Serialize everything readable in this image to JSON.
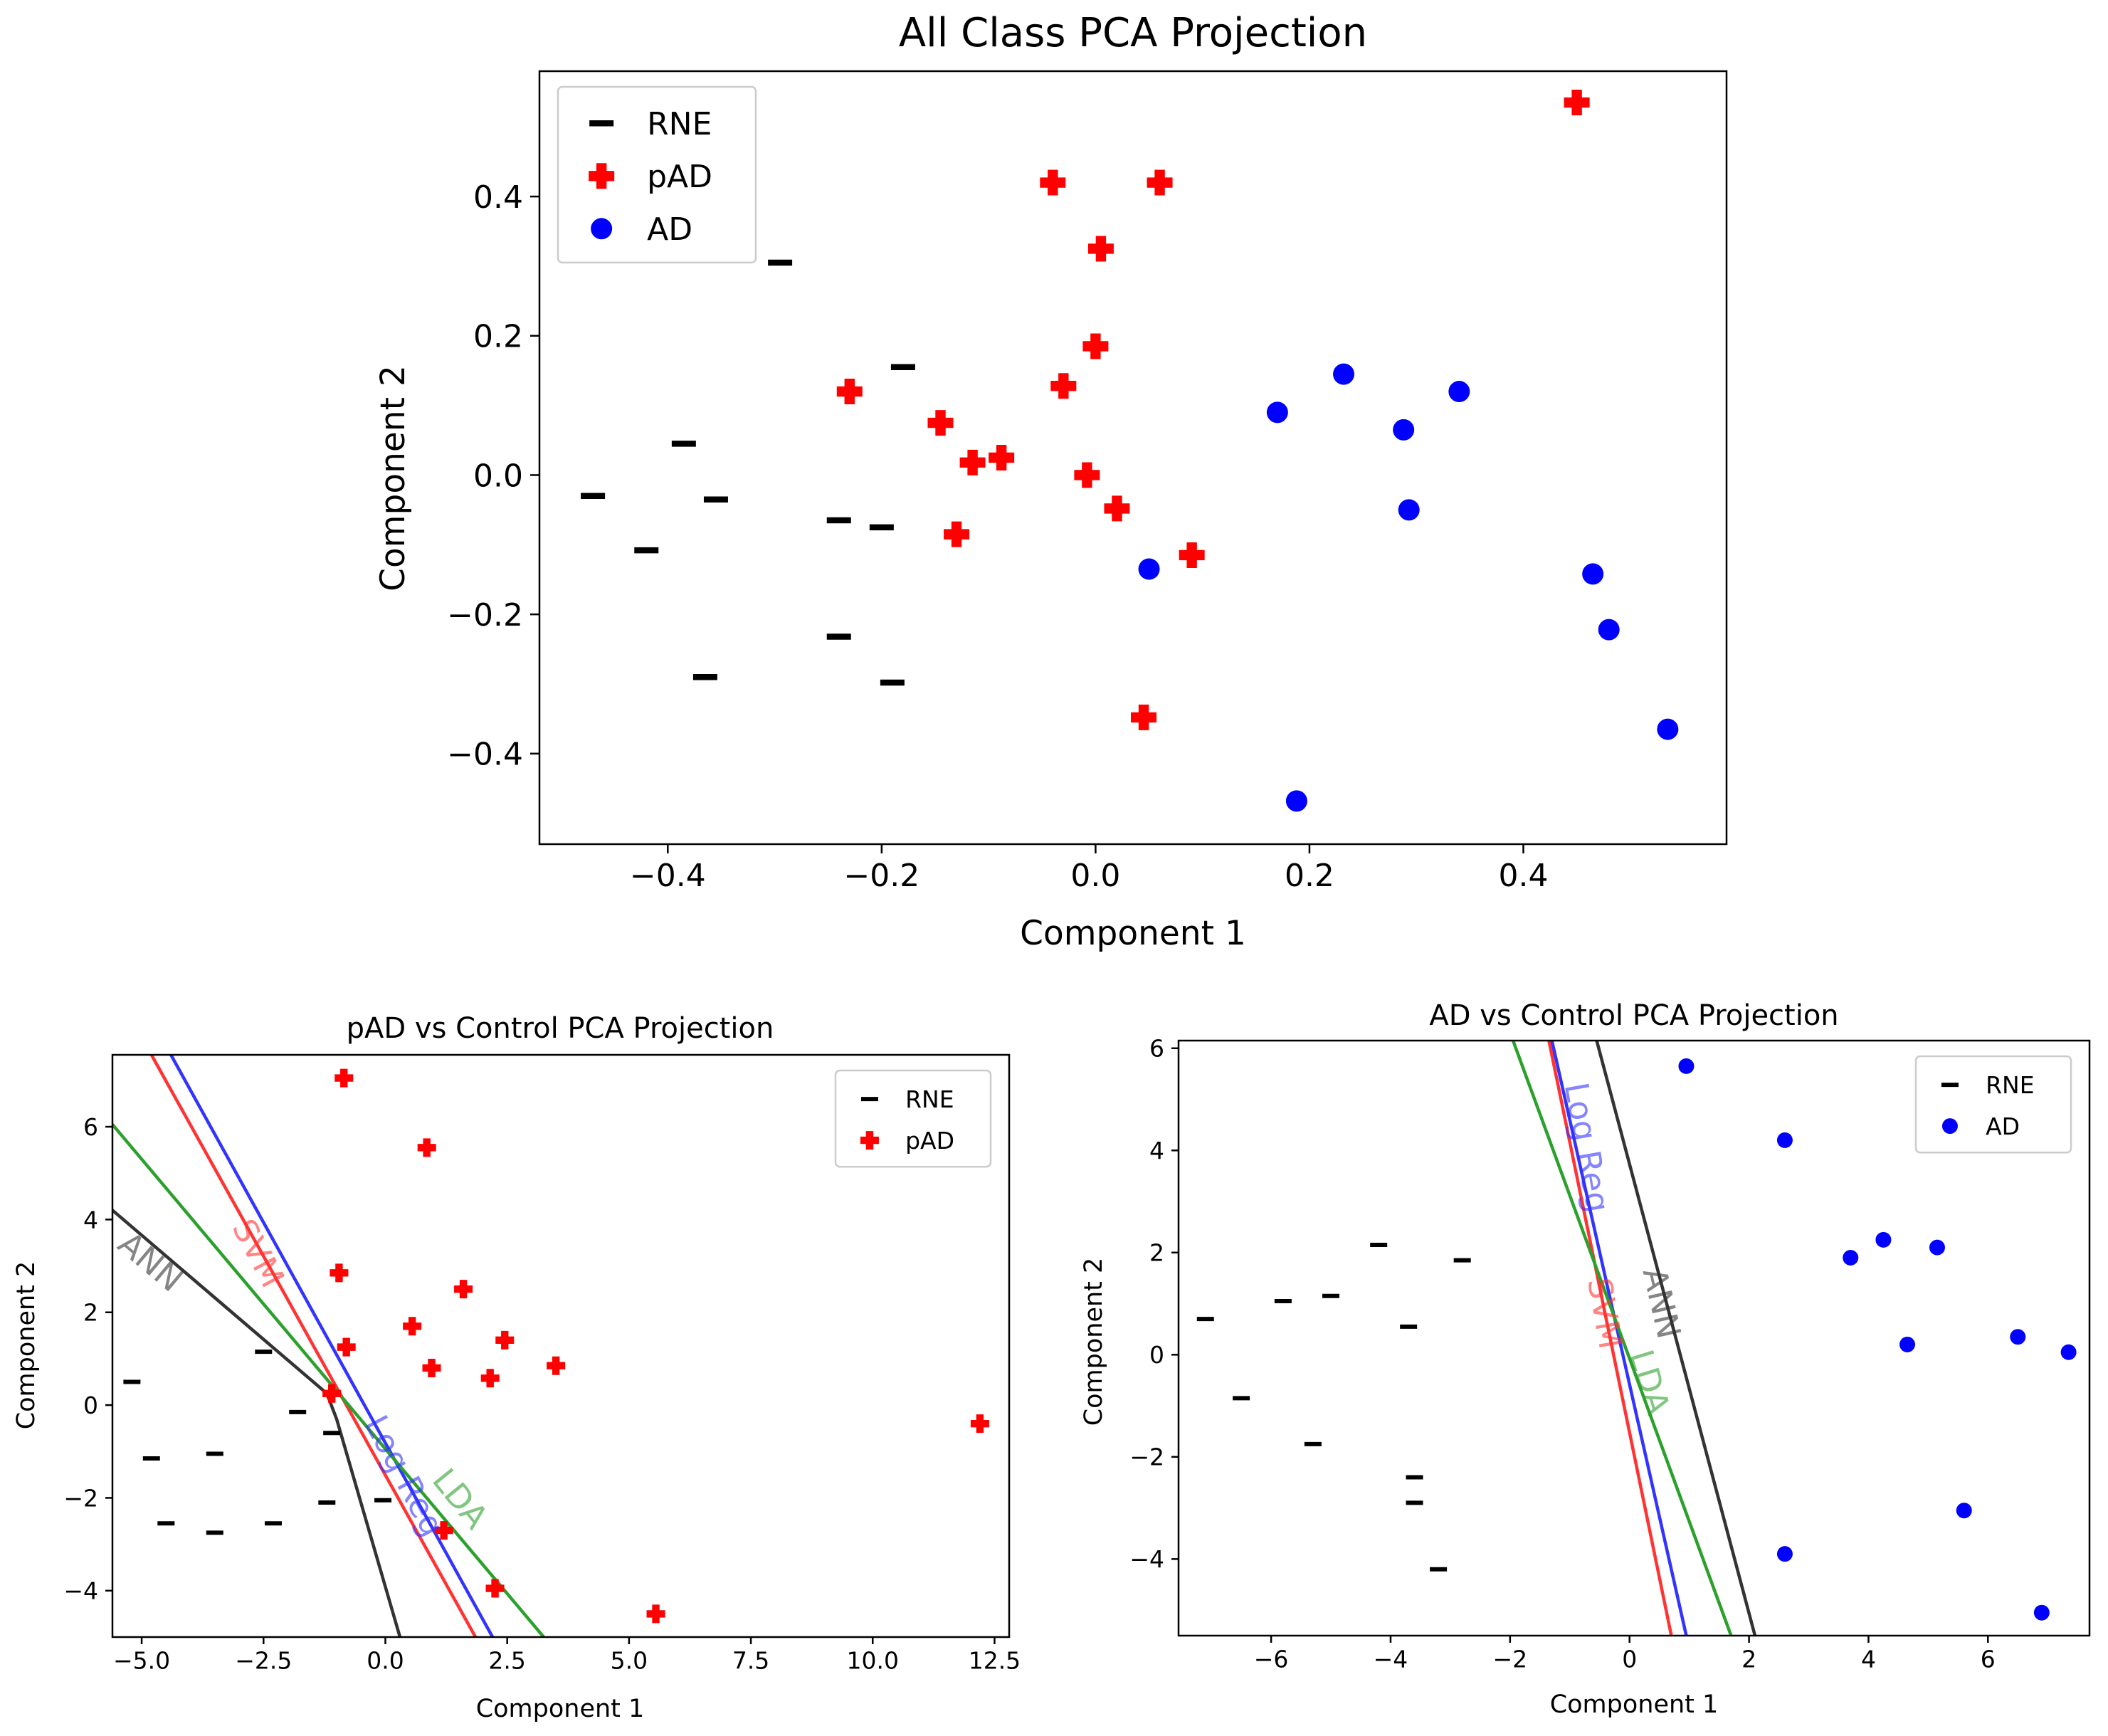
{
  "chart_data": [
    {
      "id": "top",
      "type": "scatter",
      "title": "All Class PCA Projection",
      "xlabel": "Component 1",
      "ylabel": "Component 2",
      "xlim": [
        -0.52,
        0.59
      ],
      "ylim": [
        -0.53,
        0.58
      ],
      "xticks": [
        -0.4,
        -0.2,
        0.0,
        0.2,
        0.4
      ],
      "xtick_labels": [
        "−0.4",
        "−0.2",
        "0.0",
        "0.2",
        "0.4"
      ],
      "yticks": [
        -0.4,
        -0.2,
        0.0,
        0.2,
        0.4
      ],
      "ytick_labels": [
        "−0.4",
        "−0.2",
        "0.0",
        "0.2",
        "0.4"
      ],
      "legend_position": "upper-left",
      "series": [
        {
          "name": "RNE",
          "marker": "dash",
          "color": "#000000",
          "points": [
            [
              -0.295,
              0.305
            ],
            [
              -0.18,
              0.155
            ],
            [
              -0.385,
              0.045
            ],
            [
              -0.47,
              -0.03
            ],
            [
              -0.355,
              -0.035
            ],
            [
              -0.42,
              -0.108
            ],
            [
              -0.24,
              -0.065
            ],
            [
              -0.2,
              -0.075
            ],
            [
              -0.24,
              -0.232
            ],
            [
              -0.365,
              -0.29
            ],
            [
              -0.19,
              -0.298
            ]
          ]
        },
        {
          "name": "pAD",
          "marker": "plus",
          "color": "#ff0000",
          "points": [
            [
              0.45,
              0.535
            ],
            [
              -0.04,
              0.42
            ],
            [
              0.06,
              0.42
            ],
            [
              0.005,
              0.325
            ],
            [
              0.0,
              0.185
            ],
            [
              -0.03,
              0.128
            ],
            [
              -0.23,
              0.12
            ],
            [
              -0.145,
              0.075
            ],
            [
              -0.115,
              0.018
            ],
            [
              -0.088,
              0.025
            ],
            [
              -0.008,
              0.0
            ],
            [
              0.02,
              -0.048
            ],
            [
              -0.13,
              -0.085
            ],
            [
              0.09,
              -0.115
            ],
            [
              0.045,
              -0.348
            ]
          ]
        },
        {
          "name": "AD",
          "marker": "circle",
          "color": "#0000ff",
          "points": [
            [
              0.232,
              0.145
            ],
            [
              0.17,
              0.09
            ],
            [
              0.34,
              0.12
            ],
            [
              0.288,
              0.065
            ],
            [
              0.293,
              -0.05
            ],
            [
              0.05,
              -0.135
            ],
            [
              0.465,
              -0.142
            ],
            [
              0.48,
              -0.222
            ],
            [
              0.535,
              -0.365
            ],
            [
              0.188,
              -0.468
            ]
          ]
        }
      ]
    },
    {
      "id": "left",
      "type": "scatter",
      "title": "pAD vs Control PCA Projection",
      "xlabel": "Component 1",
      "ylabel": "Component 2",
      "xlim": [
        -5.6,
        12.8
      ],
      "ylim": [
        -5.0,
        7.55
      ],
      "xticks": [
        -5,
        -2.5,
        0,
        2.5,
        5,
        7.5,
        10,
        12.5
      ],
      "xtick_labels": [
        "−5.0",
        "−2.5",
        "0.0",
        "2.5",
        "5.0",
        "7.5",
        "10.0",
        "12.5"
      ],
      "yticks": [
        -4,
        -2,
        0,
        2,
        4,
        6
      ],
      "ytick_labels": [
        "−4",
        "−2",
        "0",
        "2",
        "4",
        "6"
      ],
      "legend_position": "upper-right",
      "series": [
        {
          "name": "RNE",
          "marker": "dash",
          "color": "#000000",
          "points": [
            [
              -5.2,
              0.5
            ],
            [
              -2.5,
              1.15
            ],
            [
              -1.8,
              -0.15
            ],
            [
              -1.1,
              -0.6
            ],
            [
              -4.8,
              -1.15
            ],
            [
              -3.5,
              -1.05
            ],
            [
              -1.2,
              -2.1
            ],
            [
              -0.05,
              -2.05
            ],
            [
              -4.5,
              -2.55
            ],
            [
              -3.5,
              -2.75
            ],
            [
              -2.3,
              -2.55
            ]
          ]
        },
        {
          "name": "pAD",
          "marker": "plus",
          "color": "#ff0000",
          "points": [
            [
              -0.85,
              7.05
            ],
            [
              0.85,
              5.55
            ],
            [
              -0.95,
              2.85
            ],
            [
              1.6,
              2.5
            ],
            [
              0.55,
              1.7
            ],
            [
              2.45,
              1.4
            ],
            [
              -0.8,
              1.25
            ],
            [
              0.95,
              0.8
            ],
            [
              2.15,
              0.58
            ],
            [
              3.5,
              0.85
            ],
            [
              -1.1,
              0.25
            ],
            [
              12.2,
              -0.4
            ],
            [
              1.2,
              -2.7
            ],
            [
              2.25,
              -3.95
            ],
            [
              5.55,
              -4.5
            ]
          ]
        }
      ],
      "boundaries": [
        {
          "name": "ANN",
          "color": "#333333",
          "points": [
            [
              -5.6,
              4.2
            ],
            [
              -1.2,
              0.25
            ],
            [
              -1.0,
              -0.3
            ],
            [
              0.3,
              -5.0
            ]
          ],
          "label_xy": [
            -4.85,
            3.05
          ],
          "label_angle": 40
        },
        {
          "name": "SVM",
          "color": "#ff3333",
          "points": [
            [
              -4.8,
              7.55
            ],
            [
              1.85,
              -5.0
            ]
          ],
          "label_xy": [
            -2.65,
            3.25
          ],
          "label_angle": 62
        },
        {
          "name": "Log Reg",
          "color": "#3333ff",
          "points": [
            [
              -4.4,
              7.55
            ],
            [
              2.2,
              -5.0
            ]
          ],
          "label_xy": [
            0.35,
            -1.55
          ],
          "label_angle": 62
        },
        {
          "name": "LDA",
          "color": "#2ca02c",
          "points": [
            [
              -5.6,
              6.05
            ],
            [
              3.25,
              -5.0
            ]
          ],
          "label_xy": [
            1.5,
            -2.05
          ],
          "label_angle": 51
        }
      ]
    },
    {
      "id": "right",
      "type": "scatter",
      "title": "AD vs Control PCA Projection",
      "xlabel": "Component 1",
      "ylabel": "Component 2",
      "xlim": [
        -7.55,
        7.7
      ],
      "ylim": [
        -5.5,
        6.15
      ],
      "xticks": [
        -6,
        -4,
        -2,
        0,
        2,
        4,
        6
      ],
      "xtick_labels": [
        "−6",
        "−4",
        "−2",
        "0",
        "2",
        "4",
        "6"
      ],
      "yticks": [
        -4,
        -2,
        0,
        2,
        4,
        6
      ],
      "ytick_labels": [
        "−4",
        "−2",
        "0",
        "2",
        "4",
        "6"
      ],
      "legend_position": "upper-right",
      "series": [
        {
          "name": "RNE",
          "marker": "dash",
          "color": "#000000",
          "points": [
            [
              -4.2,
              2.15
            ],
            [
              -2.8,
              1.85
            ],
            [
              -5.8,
              1.05
            ],
            [
              -5.0,
              1.15
            ],
            [
              -7.1,
              0.7
            ],
            [
              -3.7,
              0.55
            ],
            [
              -6.5,
              -0.85
            ],
            [
              -5.3,
              -1.75
            ],
            [
              -3.6,
              -2.4
            ],
            [
              -3.6,
              -2.9
            ],
            [
              -3.2,
              -4.2
            ]
          ]
        },
        {
          "name": "AD",
          "marker": "circle",
          "color": "#0000ff",
          "points": [
            [
              0.95,
              5.65
            ],
            [
              2.6,
              4.2
            ],
            [
              4.25,
              2.25
            ],
            [
              3.7,
              1.9
            ],
            [
              5.15,
              2.1
            ],
            [
              4.65,
              0.2
            ],
            [
              6.5,
              0.35
            ],
            [
              7.35,
              0.05
            ],
            [
              5.6,
              -3.05
            ],
            [
              2.6,
              -3.9
            ],
            [
              6.9,
              -5.05
            ]
          ]
        }
      ],
      "boundaries": [
        {
          "name": "ANN",
          "color": "#333333",
          "points": [
            [
              -0.55,
              6.15
            ],
            [
              2.1,
              -5.5
            ]
          ],
          "label_xy": [
            0.5,
            1.0
          ],
          "label_angle": 77
        },
        {
          "name": "SVM",
          "color": "#ff3333",
          "points": [
            [
              -1.35,
              6.15
            ],
            [
              0.7,
              -5.5
            ]
          ],
          "label_xy": [
            -0.45,
            0.8
          ],
          "label_angle": 80
        },
        {
          "name": "Log Reg",
          "color": "#3333ff",
          "points": [
            [
              -1.3,
              6.15
            ],
            [
              0.95,
              -5.5
            ]
          ],
          "label_xy": [
            -0.75,
            4.05
          ],
          "label_angle": 80
        },
        {
          "name": "LDA",
          "color": "#2ca02c",
          "points": [
            [
              -1.95,
              6.15
            ],
            [
              1.7,
              -5.5
            ]
          ],
          "label_xy": [
            0.3,
            -0.55
          ],
          "label_angle": 73
        }
      ]
    }
  ]
}
